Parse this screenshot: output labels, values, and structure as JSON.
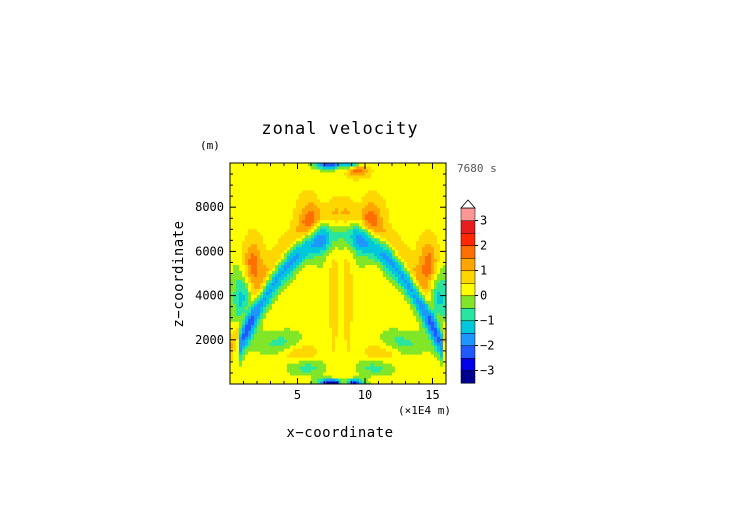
{
  "chart_data": {
    "type": "heatmap",
    "title": "zonal velocity",
    "xlabel": "x−coordinate",
    "ylabel": "z−coordinate",
    "y_unit": "(m)",
    "x_unit": "(×1E4 m)",
    "time_label": "7680 s",
    "xlim": [
      0,
      16
    ],
    "ylim": [
      0,
      10000
    ],
    "x_ticks": [
      5,
      10,
      15
    ],
    "y_ticks": [
      2000,
      4000,
      6000,
      8000
    ],
    "colorbar": {
      "levels": [
        -3.5,
        -3,
        -2.5,
        -2,
        -1.5,
        -1,
        -0.5,
        0,
        0.5,
        1,
        1.5,
        2,
        2.5,
        3,
        3.5
      ],
      "tick_values": [
        3,
        2,
        1,
        0,
        -1,
        -2,
        -3
      ],
      "tick_labels": [
        "3",
        "2",
        "1",
        "0",
        "−1",
        "−2",
        "−3"
      ],
      "colors": [
        "#00008c",
        "#0000e6",
        "#1e5aff",
        "#1e96ff",
        "#00c8dc",
        "#28e6a0",
        "#82e628",
        "#ffff00",
        "#ffd700",
        "#ffa500",
        "#ff6e00",
        "#ff2800",
        "#e61e1e",
        "#ff9696"
      ],
      "extend": "max"
    },
    "field_description": "symmetric mountain-wave pattern centered near x = 8.2E4 m; sign-alternating bands",
    "grid": false
  }
}
